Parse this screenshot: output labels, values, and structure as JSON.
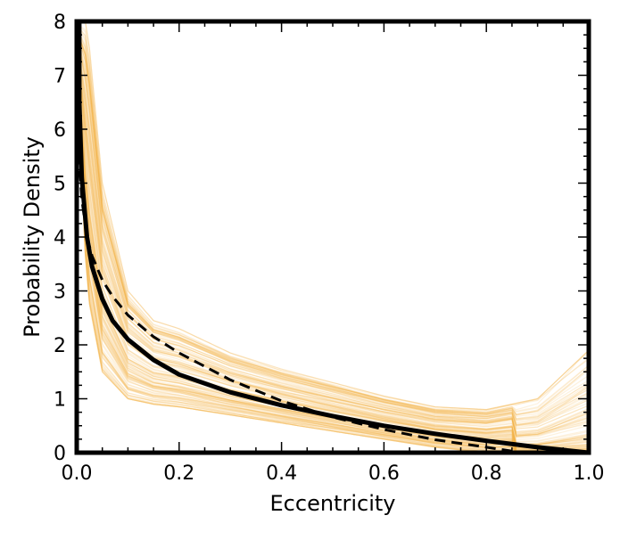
{
  "chart_data": {
    "type": "line",
    "title": "",
    "xlabel": "Eccentricity",
    "ylabel": "Probability Density",
    "xlim": [
      0.0,
      1.0
    ],
    "ylim": [
      0,
      8
    ],
    "xticks": [
      {
        "value": 0.0,
        "label": "0.0"
      },
      {
        "value": 0.2,
        "label": "0.2"
      },
      {
        "value": 0.4,
        "label": "0.4"
      },
      {
        "value": 0.6,
        "label": "0.6"
      },
      {
        "value": 0.8,
        "label": "0.8"
      },
      {
        "value": 1.0,
        "label": "1.0"
      }
    ],
    "yticks": [
      {
        "value": 0,
        "label": "0"
      },
      {
        "value": 1,
        "label": "1"
      },
      {
        "value": 2,
        "label": "2"
      },
      {
        "value": 3,
        "label": "3"
      },
      {
        "value": 4,
        "label": "4"
      },
      {
        "value": 5,
        "label": "5"
      },
      {
        "value": 6,
        "label": "6"
      },
      {
        "value": 7,
        "label": "7"
      },
      {
        "value": 8,
        "label": "8"
      }
    ],
    "grid": false,
    "legend": "none",
    "colors": {
      "samples": "#f5b041",
      "solid": "#000000",
      "dashed": "#000000",
      "frame": "#000000"
    },
    "series": [
      {
        "style": "solid",
        "x": [
          0.005,
          0.01,
          0.02,
          0.03,
          0.05,
          0.07,
          0.1,
          0.15,
          0.2,
          0.3,
          0.4,
          0.5,
          0.6,
          0.7,
          0.8,
          0.9,
          1.0
        ],
        "y": [
          6.5,
          5.1,
          4.0,
          3.45,
          2.85,
          2.45,
          2.1,
          1.72,
          1.45,
          1.12,
          0.88,
          0.68,
          0.5,
          0.35,
          0.22,
          0.1,
          0.0
        ]
      },
      {
        "style": "dashed",
        "x": [
          0.005,
          0.01,
          0.02,
          0.03,
          0.05,
          0.07,
          0.1,
          0.15,
          0.2,
          0.3,
          0.4,
          0.5,
          0.6,
          0.7,
          0.8,
          0.87,
          0.9
        ],
        "y": [
          5.4,
          4.7,
          4.0,
          3.65,
          3.2,
          2.9,
          2.55,
          2.15,
          1.85,
          1.35,
          0.96,
          0.66,
          0.43,
          0.24,
          0.1,
          0.0,
          0.0
        ]
      }
    ],
    "sample_band": {
      "description_count": 140,
      "x": [
        0.0,
        0.02,
        0.05,
        0.1,
        0.15,
        0.2,
        0.3,
        0.4,
        0.5,
        0.6,
        0.7,
        0.8,
        0.9,
        1.0
      ],
      "y_low": [
        7.0,
        3.0,
        1.5,
        1.0,
        0.9,
        0.85,
        0.7,
        0.55,
        0.4,
        0.25,
        0.1,
        0.0,
        0.0,
        0.0
      ],
      "y_high": [
        8.0,
        8.0,
        5.0,
        3.0,
        2.45,
        2.3,
        1.85,
        1.55,
        1.3,
        1.05,
        0.85,
        0.8,
        1.0,
        1.9
      ]
    }
  }
}
